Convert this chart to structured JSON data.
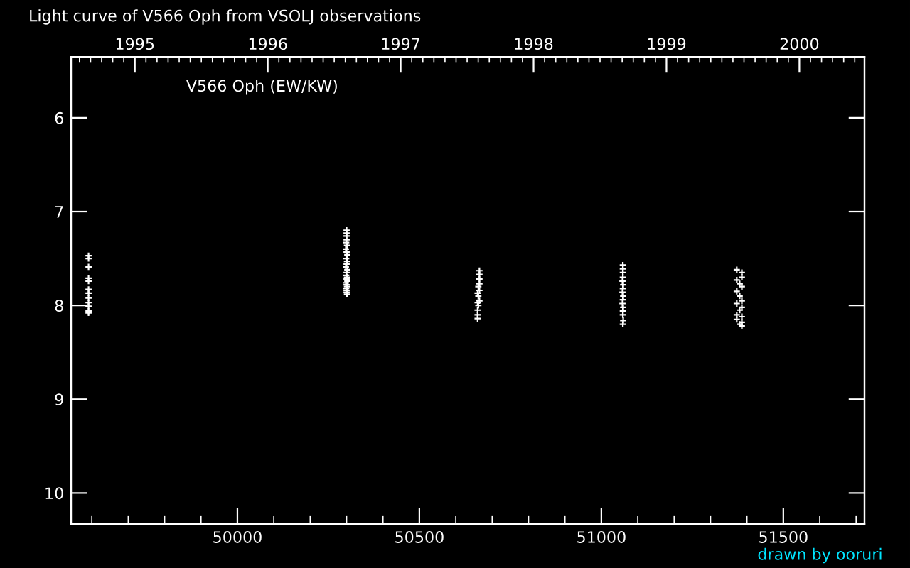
{
  "chart_data": {
    "type": "scatter",
    "title": "Light curve of V566 Oph from VSOLJ observations",
    "annotations": [
      "V566 Oph (EW/KW)",
      "drawn by ooruri"
    ],
    "x": [
      49591,
      49591,
      49591,
      49591,
      49591,
      49591,
      49591,
      49591,
      49591,
      49591,
      49591,
      49591,
      50300,
      50300,
      50300,
      50300,
      50299,
      50301,
      50298,
      50300,
      50302,
      50299,
      50301,
      50300,
      50298,
      50302,
      50300,
      50299,
      50301,
      50300,
      50302,
      50298,
      50300,
      50301,
      50299,
      50300,
      50300,
      50301,
      50665,
      50665,
      50665,
      50665,
      50662,
      50665,
      50660,
      50662,
      50665,
      50660,
      50662,
      50660,
      50660,
      50660,
      51059,
      51059,
      51059,
      51059,
      51058,
      51060,
      51059,
      51058,
      51060,
      51059,
      51058,
      51060,
      51059,
      51059,
      51060,
      51059,
      51372,
      51386,
      51386,
      51372,
      51380,
      51386,
      51372,
      51380,
      51386,
      51372,
      51386,
      51380,
      51372,
      51386,
      51372,
      51386,
      51380,
      51386
    ],
    "values": [
      7.47,
      7.5,
      7.59,
      7.71,
      7.74,
      7.83,
      7.87,
      7.92,
      7.97,
      8.01,
      8.06,
      8.08,
      7.2,
      7.23,
      7.26,
      7.3,
      7.33,
      7.36,
      7.4,
      7.43,
      7.46,
      7.5,
      7.53,
      7.56,
      7.59,
      7.62,
      7.65,
      7.68,
      7.7,
      7.72,
      7.74,
      7.76,
      7.78,
      7.8,
      7.82,
      7.84,
      7.86,
      7.88,
      7.63,
      7.67,
      7.72,
      7.77,
      7.8,
      7.84,
      7.87,
      7.9,
      7.95,
      7.97,
      8.0,
      8.05,
      8.1,
      8.14,
      7.57,
      7.61,
      7.65,
      7.7,
      7.74,
      7.78,
      7.82,
      7.86,
      7.9,
      7.94,
      7.98,
      8.02,
      8.06,
      8.1,
      8.16,
      8.2,
      7.62,
      7.65,
      7.7,
      7.73,
      7.77,
      7.8,
      7.85,
      7.9,
      7.95,
      7.98,
      8.02,
      8.05,
      8.1,
      8.12,
      8.15,
      8.18,
      8.2,
      8.22
    ],
    "color": "#ffffff",
    "marker": "cross",
    "xlim": [
      49543,
      51723
    ],
    "xticks": [
      50000,
      50500,
      51000,
      51500
    ],
    "ylim": [
      10.33,
      5.35
    ],
    "yticks": [
      6,
      7,
      8,
      9,
      10
    ],
    "x2lim": [
      1994.52,
      2000.49
    ],
    "x2ticks": [
      1995,
      1996,
      1997,
      1998,
      1999,
      2000
    ],
    "grid": false,
    "legend": false
  }
}
